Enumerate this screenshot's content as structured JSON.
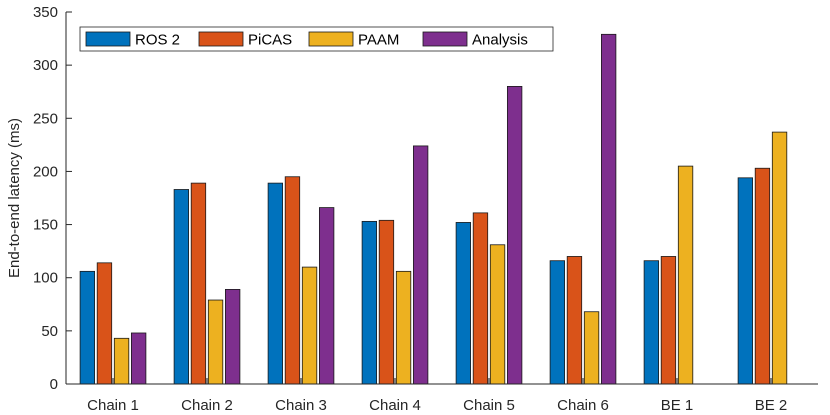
{
  "chart_data": {
    "type": "bar",
    "title": "",
    "xlabel": "",
    "ylabel": "End-to-end latency (ms)",
    "ylim": [
      0,
      350
    ],
    "yticks": [
      0,
      50,
      100,
      150,
      200,
      250,
      300,
      350
    ],
    "grid": false,
    "legend_position": "top-left",
    "categories": [
      "Chain 1",
      "Chain 2",
      "Chain 3",
      "Chain 4",
      "Chain 5",
      "Chain 6",
      "BE 1",
      "BE 2"
    ],
    "series": [
      {
        "name": "ROS 2",
        "color": "#0072BD",
        "values": [
          106,
          183,
          189,
          153,
          152,
          116,
          116,
          194
        ]
      },
      {
        "name": "PiCAS",
        "color": "#D95319",
        "values": [
          114,
          189,
          195,
          154,
          161,
          120,
          120,
          203
        ]
      },
      {
        "name": "PAAM",
        "color": "#EDB120",
        "values": [
          43,
          79,
          110,
          106,
          131,
          68,
          205,
          237
        ]
      },
      {
        "name": "Analysis",
        "color": "#7E2F8E",
        "values": [
          48,
          89,
          166,
          224,
          280,
          329,
          0,
          0
        ]
      }
    ]
  }
}
